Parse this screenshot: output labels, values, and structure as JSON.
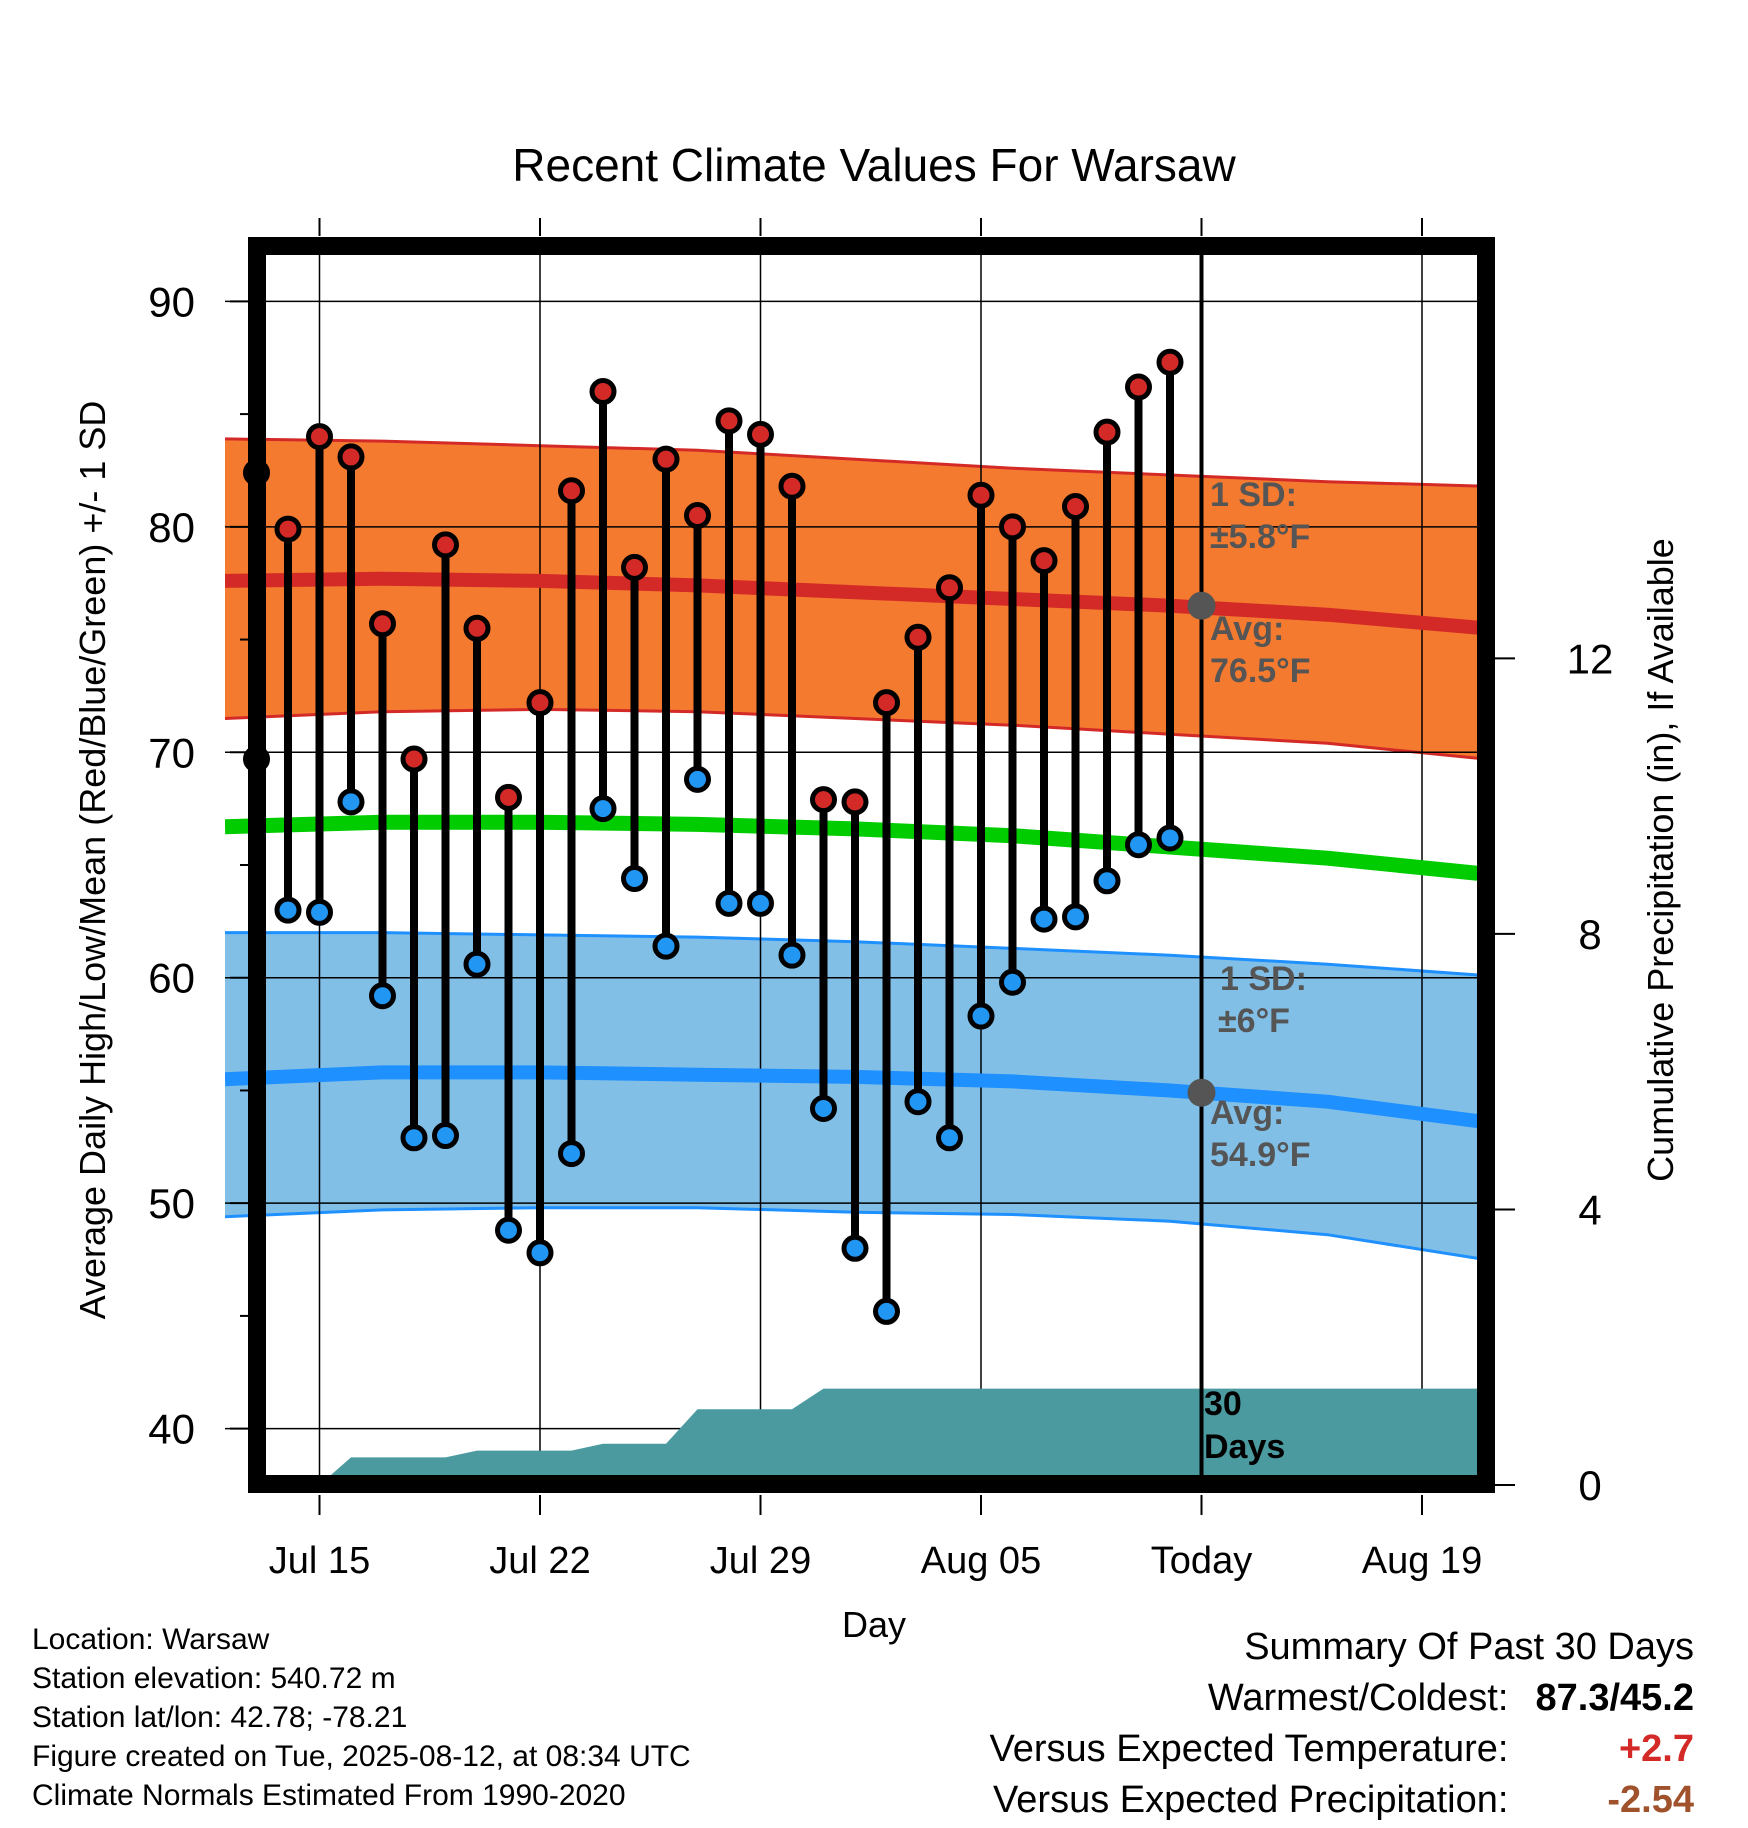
{
  "chart_data": {
    "type": "line",
    "title": "Recent Climate Values For Warsaw",
    "xlabel": "Day",
    "ylabel": "Average Daily High/Low/Mean (Red/Blue/Green) +/- 1 SD",
    "y2label": "Cumulative Precipitation (in), If Available",
    "ylim": [
      37.5,
      92.5
    ],
    "y_ticks": [
      "40",
      "50",
      "60",
      "70",
      "80",
      "90"
    ],
    "y2lim": [
      0,
      18
    ],
    "y2_ticks": [
      "0",
      "4",
      "8",
      "12"
    ],
    "xlim": [
      "2025-07-12",
      "2025-08-21"
    ],
    "x_ticks": [
      {
        "date": "2025-07-15",
        "label": "Jul 15"
      },
      {
        "date": "2025-07-22",
        "label": "Jul 22"
      },
      {
        "date": "2025-07-29",
        "label": "Jul 29"
      },
      {
        "date": "2025-08-05",
        "label": "Aug 05"
      },
      {
        "date": "2025-08-12",
        "label": "Today"
      },
      {
        "date": "2025-08-19",
        "label": "Aug 19"
      }
    ],
    "grid": true,
    "today": "2025-08-12",
    "daily_observations": {
      "dates": [
        "2025-07-13",
        "2025-07-14",
        "2025-07-15",
        "2025-07-16",
        "2025-07-17",
        "2025-07-18",
        "2025-07-19",
        "2025-07-20",
        "2025-07-21",
        "2025-07-22",
        "2025-07-23",
        "2025-07-24",
        "2025-07-25",
        "2025-07-26",
        "2025-07-27",
        "2025-07-28",
        "2025-07-29",
        "2025-07-30",
        "2025-07-31",
        "2025-08-01",
        "2025-08-02",
        "2025-08-03",
        "2025-08-04",
        "2025-08-05",
        "2025-08-06",
        "2025-08-07",
        "2025-08-08",
        "2025-08-09",
        "2025-08-10",
        "2025-08-11"
      ],
      "high": [
        82.4,
        79.9,
        84.0,
        83.1,
        75.7,
        69.7,
        79.2,
        75.5,
        68.0,
        72.2,
        81.6,
        86.0,
        78.2,
        83.0,
        80.5,
        84.7,
        84.1,
        81.8,
        67.9,
        67.8,
        72.2,
        75.1,
        77.3,
        81.4,
        80.0,
        78.5,
        80.9,
        84.2,
        86.2,
        87.3
      ],
      "low": [
        69.7,
        63.0,
        62.9,
        67.8,
        59.2,
        52.9,
        53.0,
        60.6,
        48.8,
        47.8,
        52.2,
        67.5,
        64.4,
        61.4,
        68.8,
        63.3,
        63.3,
        61.0,
        54.2,
        48.0,
        45.2,
        54.5,
        52.9,
        58.3,
        59.8,
        62.6,
        62.7,
        64.3,
        65.9,
        66.2
      ]
    },
    "normals": {
      "dates": [
        "2025-07-12",
        "2025-07-17",
        "2025-07-22",
        "2025-07-27",
        "2025-08-01",
        "2025-08-06",
        "2025-08-11",
        "2025-08-16",
        "2025-08-21"
      ],
      "high_mean": [
        77.6,
        77.7,
        77.6,
        77.4,
        77.1,
        76.8,
        76.5,
        76.1,
        75.5
      ],
      "high_upper": [
        83.9,
        83.8,
        83.6,
        83.4,
        83.0,
        82.6,
        82.3,
        82.0,
        81.8
      ],
      "high_lower": [
        71.5,
        71.8,
        71.9,
        71.8,
        71.5,
        71.2,
        70.8,
        70.4,
        69.7
      ],
      "mean": [
        66.7,
        66.9,
        66.9,
        66.8,
        66.6,
        66.3,
        65.8,
        65.3,
        64.6
      ],
      "low_mean": [
        55.5,
        55.8,
        55.8,
        55.7,
        55.6,
        55.4,
        55.0,
        54.5,
        53.6
      ],
      "low_upper": [
        62.0,
        62.0,
        61.9,
        61.8,
        61.6,
        61.3,
        61.0,
        60.6,
        60.1
      ],
      "low_lower": [
        49.4,
        49.7,
        49.8,
        49.8,
        49.6,
        49.5,
        49.2,
        48.6,
        47.5
      ]
    },
    "precipitation_cumulative": {
      "dates": [
        "2025-07-12",
        "2025-07-14",
        "2025-07-15",
        "2025-07-16",
        "2025-07-17",
        "2025-07-18",
        "2025-07-19",
        "2025-07-20",
        "2025-07-21",
        "2025-07-22",
        "2025-07-23",
        "2025-07-24",
        "2025-07-25",
        "2025-07-26",
        "2025-07-27",
        "2025-07-28",
        "2025-07-29",
        "2025-07-30",
        "2025-07-31",
        "2025-08-21"
      ],
      "values": [
        0,
        0,
        0,
        0.4,
        0.4,
        0.4,
        0.4,
        0.5,
        0.5,
        0.5,
        0.5,
        0.6,
        0.6,
        0.6,
        1.1,
        1.1,
        1.1,
        1.1,
        1.4,
        1.4
      ]
    },
    "annotations": {
      "high_sd_line1": "1 SD:",
      "high_sd_line2": "±5.8°F",
      "high_avg_line1": "Avg:",
      "high_avg_line2": "76.5°F",
      "high_avg_value": 76.5,
      "low_sd_line1": "1 SD:",
      "low_sd_line2": "±6°F",
      "low_avg_line1": "Avg:",
      "low_avg_line2": "54.9°F",
      "low_avg_value": 54.9,
      "days_line1": "30",
      "days_line2": "Days"
    },
    "colors": {
      "high_band": "#F47A2F",
      "high_line": "#D42A27",
      "low_band": "#82BFE7",
      "low_line": "#1E90FF",
      "mean_line": "#00CC00",
      "precip": "#4A9AA0",
      "high_marker": "#D42A27",
      "low_marker": "#2196F3",
      "annotation": "#555555",
      "avg_dot": "#555555"
    }
  },
  "footer": {
    "location": "Location: Warsaw",
    "elevation": "Station elevation: 540.72 m",
    "latlon": "Station lat/lon: 42.78; -78.21",
    "created": "Figure created on Tue, 2025-08-12, at 08:34 UTC",
    "normals": "Climate Normals Estimated From 1990-2020"
  },
  "summary": {
    "heading": "Summary Of Past 30 Days",
    "warm_cold_label": "Warmest/Coldest:",
    "warm_cold_value": "87.3/45.2",
    "temp_label": "Versus Expected Temperature:",
    "temp_value": "+2.7",
    "temp_color": "#D42A27",
    "precip_label": "Versus Expected Precipitation:",
    "precip_value": "-2.54",
    "precip_color": "#A0522D"
  }
}
